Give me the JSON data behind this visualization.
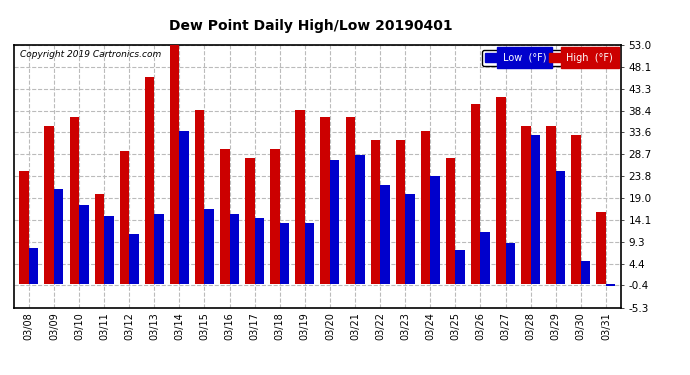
{
  "title": "Dew Point Daily High/Low 20190401",
  "copyright": "Copyright 2019 Cartronics.com",
  "dates": [
    "03/08",
    "03/09",
    "03/10",
    "03/11",
    "03/12",
    "03/13",
    "03/14",
    "03/15",
    "03/16",
    "03/17",
    "03/18",
    "03/19",
    "03/20",
    "03/21",
    "03/22",
    "03/23",
    "03/24",
    "03/25",
    "03/26",
    "03/27",
    "03/28",
    "03/29",
    "03/30",
    "03/31"
  ],
  "low_values": [
    8.0,
    21.0,
    17.5,
    15.0,
    11.0,
    15.5,
    34.0,
    16.5,
    15.5,
    14.5,
    13.5,
    13.5,
    27.5,
    28.5,
    22.0,
    20.0,
    24.0,
    7.5,
    11.5,
    9.0,
    33.0,
    25.0,
    5.0,
    -0.5
  ],
  "high_values": [
    25.0,
    35.0,
    37.0,
    20.0,
    29.5,
    46.0,
    53.0,
    38.5,
    30.0,
    28.0,
    30.0,
    38.5,
    37.0,
    37.0,
    32.0,
    32.0,
    34.0,
    28.0,
    40.0,
    41.5,
    35.0,
    35.0,
    33.0,
    16.0
  ],
  "low_color": "#0000cc",
  "high_color": "#cc0000",
  "bg_color": "#ffffff",
  "plot_bg_color": "#ffffff",
  "grid_color": "#bbbbbb",
  "ylim_min": -5.3,
  "ylim_max": 53.0,
  "yticks": [
    -5.3,
    -0.4,
    4.4,
    9.3,
    14.1,
    19.0,
    23.8,
    28.7,
    33.6,
    38.4,
    43.3,
    48.1,
    53.0
  ],
  "legend_labels": [
    "Low  (°F)",
    "High  (°F)"
  ]
}
